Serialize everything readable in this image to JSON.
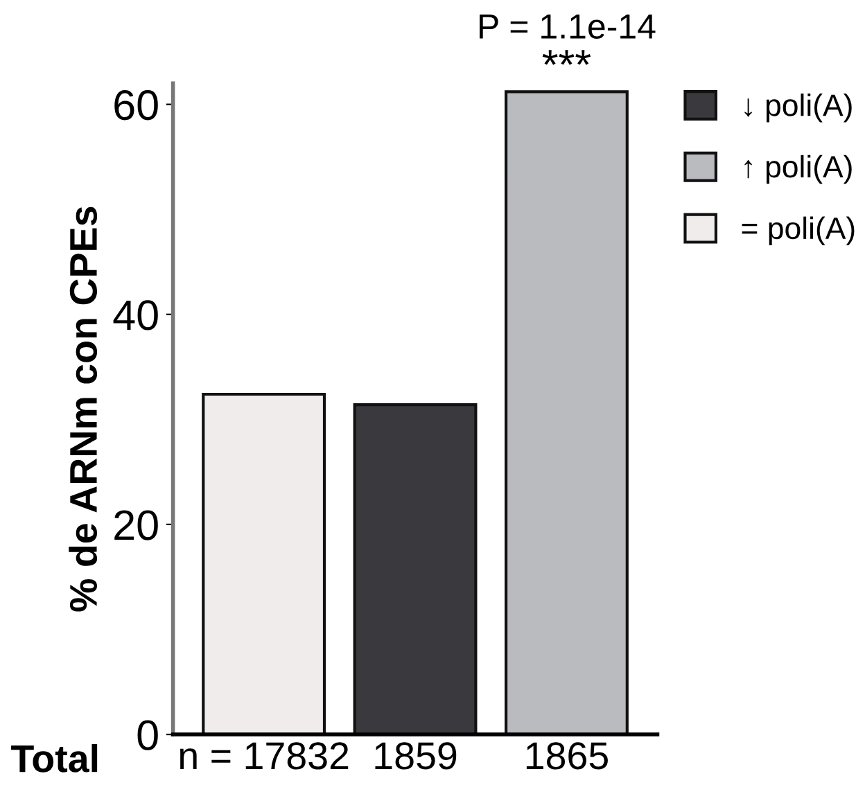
{
  "chart_data": {
    "type": "bar",
    "ylabel": "% de ARNm con CPEs",
    "categories": [
      "n = 17832",
      "1859",
      "1865"
    ],
    "series": [
      {
        "name": "↓ poli(A)",
        "color": "#3a393e",
        "values": [
          null,
          31.4,
          null
        ]
      },
      {
        "name": "↑ poli(A)",
        "color": "#b9bbbf",
        "values": [
          null,
          null,
          61.2
        ]
      },
      {
        "name": "= poli(A)",
        "color": "#f0eceb",
        "values": [
          32.4,
          null,
          null
        ]
      }
    ],
    "ylim": [
      0,
      62
    ],
    "yticks": [
      0,
      20,
      40,
      60
    ],
    "grid": false,
    "legend": "right",
    "annotations": [
      {
        "text": "***",
        "x": "1865",
        "y": 61.2
      },
      {
        "text": "P = 1.1e-14",
        "x": "1865",
        "y": 61.2
      },
      "Total"
    ]
  }
}
